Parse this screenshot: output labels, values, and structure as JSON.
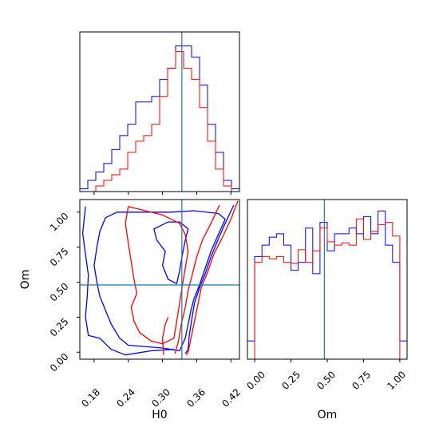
{
  "chart_data": [
    {
      "panel": "H0-marginal",
      "type": "histogram",
      "x_range": [
        0.155,
        0.435
      ],
      "truth": 0.334,
      "series": [
        {
          "color": "#0000ff",
          "bin_edges": [
            0.155,
            0.169,
            0.183,
            0.197,
            0.211,
            0.225,
            0.239,
            0.253,
            0.267,
            0.281,
            0.295,
            0.309,
            0.323,
            0.337,
            0.351,
            0.365,
            0.379,
            0.393,
            0.407,
            0.421,
            0.435
          ],
          "counts": [
            0.5,
            2,
            3.5,
            5,
            7.5,
            10,
            12,
            16,
            16,
            17,
            20,
            22,
            26,
            26,
            24,
            19,
            12,
            7,
            2,
            0.5
          ]
        },
        {
          "color": "#ff0000",
          "bin_edges": [
            0.155,
            0.169,
            0.183,
            0.197,
            0.211,
            0.225,
            0.239,
            0.253,
            0.267,
            0.281,
            0.295,
            0.309,
            0.323,
            0.337,
            0.351,
            0.365,
            0.379,
            0.393,
            0.407,
            0.421,
            0.435
          ],
          "counts": [
            0,
            0,
            1,
            2,
            3,
            4,
            7,
            9,
            10,
            12,
            17,
            22,
            25,
            22,
            20,
            15,
            9,
            4,
            1,
            0
          ]
        }
      ]
    },
    {
      "panel": "Om-marginal",
      "type": "histogram",
      "x_range": [
        -0.05,
        1.05
      ],
      "truth": 0.48,
      "series": [
        {
          "color": "#0000ff",
          "bin_edges": [
            -0.05,
            0.0,
            0.05,
            0.1,
            0.15,
            0.2,
            0.25,
            0.3,
            0.35,
            0.4,
            0.45,
            0.5,
            0.55,
            0.6,
            0.65,
            0.7,
            0.75,
            0.8,
            0.85,
            0.9,
            0.95,
            1.0,
            1.05
          ],
          "counts": [
            1.6,
            9,
            10,
            10.7,
            11,
            10,
            7.8,
            8.5,
            11.5,
            7.5,
            12,
            9.5,
            11,
            11,
            11.5,
            11,
            12.5,
            11,
            13,
            10,
            8.5,
            1.6
          ]
        },
        {
          "color": "#ff0000",
          "bin_edges": [
            -0.05,
            0.0,
            0.05,
            0.1,
            0.15,
            0.2,
            0.25,
            0.3,
            0.35,
            0.4,
            0.45,
            0.5,
            0.55,
            0.6,
            0.65,
            0.7,
            0.75,
            0.8,
            0.85,
            0.9,
            0.95,
            1.0,
            1.05
          ],
          "counts": [
            0,
            8.5,
            9,
            8.8,
            9,
            8.5,
            8.4,
            9.6,
            8.5,
            9.5,
            11.5,
            10.3,
            10,
            10.2,
            10,
            12.3,
            10.5,
            11.2,
            11.8,
            12,
            10.8,
            0
          ]
        }
      ]
    },
    {
      "panel": "H0-Om-joint",
      "type": "contour",
      "x_range": [
        0.155,
        0.435
      ],
      "y_range": [
        -0.05,
        1.09
      ],
      "truth": {
        "H0": 0.334,
        "Om": 0.48
      },
      "series": [
        {
          "color": "#0000ff",
          "contours": [
            [
              [
                0.425,
                1.05
              ],
              [
                0.41,
                0.92
              ],
              [
                0.397,
                0.8
              ],
              [
                0.385,
                0.68
              ],
              [
                0.375,
                0.56
              ],
              [
                0.365,
                0.46
              ],
              [
                0.356,
                0.35
              ],
              [
                0.352,
                0.25
              ],
              [
                0.347,
                0.12
              ],
              [
                0.345,
                0.02
              ],
              [
                0.34,
                -0.01
              ]
            ],
            [
              [
                0.398,
                0.99
              ],
              [
                0.355,
                1.01
              ],
              [
                0.315,
                1.0
              ],
              [
                0.25,
                1.0
              ],
              [
                0.22,
                1.0
              ],
              [
                0.2,
                0.96
              ],
              [
                0.19,
                0.86
              ],
              [
                0.185,
                0.75
              ],
              [
                0.18,
                0.62
              ],
              [
                0.185,
                0.5
              ],
              [
                0.19,
                0.4
              ],
              [
                0.2,
                0.3
              ],
              [
                0.21,
                0.2
              ],
              [
                0.225,
                0.1
              ],
              [
                0.24,
                0.05
              ],
              [
                0.3,
                0.03
              ],
              [
                0.33,
                0.01
              ],
              [
                0.34,
                0.1
              ],
              [
                0.345,
                0.2
              ],
              [
                0.35,
                0.3
              ],
              [
                0.355,
                0.38
              ],
              [
                0.365,
                0.48
              ],
              [
                0.375,
                0.6
              ],
              [
                0.385,
                0.72
              ],
              [
                0.4,
                0.86
              ],
              [
                0.41,
                0.95
              ],
              [
                0.398,
                0.99
              ]
            ],
            [
              [
                0.33,
                0.93
              ],
              [
                0.31,
                0.93
              ],
              [
                0.285,
                0.88
              ],
              [
                0.29,
                0.8
              ],
              [
                0.305,
                0.72
              ],
              [
                0.3,
                0.62
              ],
              [
                0.31,
                0.52
              ],
              [
                0.325,
                0.49
              ],
              [
                0.33,
                0.58
              ],
              [
                0.335,
                0.7
              ],
              [
                0.34,
                0.8
              ],
              [
                0.345,
                0.88
              ],
              [
                0.33,
                0.93
              ]
            ],
            [
              [
                0.165,
                1.04
              ],
              [
                0.16,
                0.85
              ],
              [
                0.165,
                0.7
              ],
              [
                0.17,
                0.55
              ],
              [
                0.168,
                0.4
              ],
              [
                0.165,
                0.25
              ],
              [
                0.17,
                0.12
              ],
              [
                0.19,
                0.1
              ],
              [
                0.21,
                0.02
              ],
              [
                0.235,
                -0.02
              ],
              [
                0.28,
                0.01
              ],
              [
                0.32,
                0.02
              ]
            ]
          ]
        },
        {
          "color": "#ff0000",
          "contours": [
            [
              [
                0.432,
                1.08
              ],
              [
                0.42,
                0.95
              ],
              [
                0.405,
                0.82
              ],
              [
                0.39,
                0.7
              ],
              [
                0.38,
                0.58
              ],
              [
                0.368,
                0.46
              ],
              [
                0.362,
                0.34
              ],
              [
                0.356,
                0.22
              ],
              [
                0.35,
                0.1
              ],
              [
                0.345,
                0.0
              ],
              [
                0.342,
                -0.02
              ]
            ],
            [
              [
                0.4,
                1.05
              ],
              [
                0.385,
                0.92
              ],
              [
                0.37,
                0.8
              ],
              [
                0.36,
                0.68
              ],
              [
                0.352,
                0.55
              ],
              [
                0.345,
                0.44
              ],
              [
                0.34,
                0.32
              ],
              [
                0.333,
                0.2
              ],
              [
                0.328,
                0.08
              ],
              [
                0.322,
                -0.01
              ]
            ],
            [
              [
                0.33,
                0.92
              ],
              [
                0.3,
                0.98
              ],
              [
                0.26,
                1.02
              ],
              [
                0.24,
                1.04
              ],
              [
                0.235,
                0.92
              ],
              [
                0.24,
                0.78
              ],
              [
                0.245,
                0.65
              ],
              [
                0.25,
                0.52
              ],
              [
                0.255,
                0.42
              ],
              [
                0.245,
                0.32
              ],
              [
                0.25,
                0.22
              ],
              [
                0.26,
                0.14
              ],
              [
                0.28,
                0.08
              ],
              [
                0.3,
                0.06
              ],
              [
                0.32,
                0.1
              ],
              [
                0.325,
                0.22
              ],
              [
                0.33,
                0.35
              ],
              [
                0.335,
                0.48
              ],
              [
                0.34,
                0.6
              ],
              [
                0.345,
                0.72
              ],
              [
                0.34,
                0.84
              ],
              [
                0.33,
                0.92
              ]
            ],
            [
              [
                0.302,
                -0.02
              ],
              [
                0.3,
                0.1
              ],
              [
                0.305,
                0.2
              ],
              [
                0.31,
                0.25
              ]
            ]
          ]
        }
      ]
    }
  ],
  "axes": {
    "x_label_H0": "H0",
    "x_label_Om": "Om",
    "y_label_joint": "Om",
    "H0_ticks": [
      "0.18",
      "0.24",
      "0.30",
      "0.36",
      "0.42"
    ],
    "H0_tick_values": [
      0.18,
      0.24,
      0.3,
      0.36,
      0.42
    ],
    "Om_ticks": [
      "0.00",
      "0.25",
      "0.50",
      "0.75",
      "1.00"
    ],
    "Om_tick_values": [
      0.0,
      0.25,
      0.5,
      0.75,
      1.0
    ]
  },
  "colors": {
    "series_blue": "#0000ff",
    "series_red": "#ff0000",
    "truth_line": "#1f77b4"
  }
}
